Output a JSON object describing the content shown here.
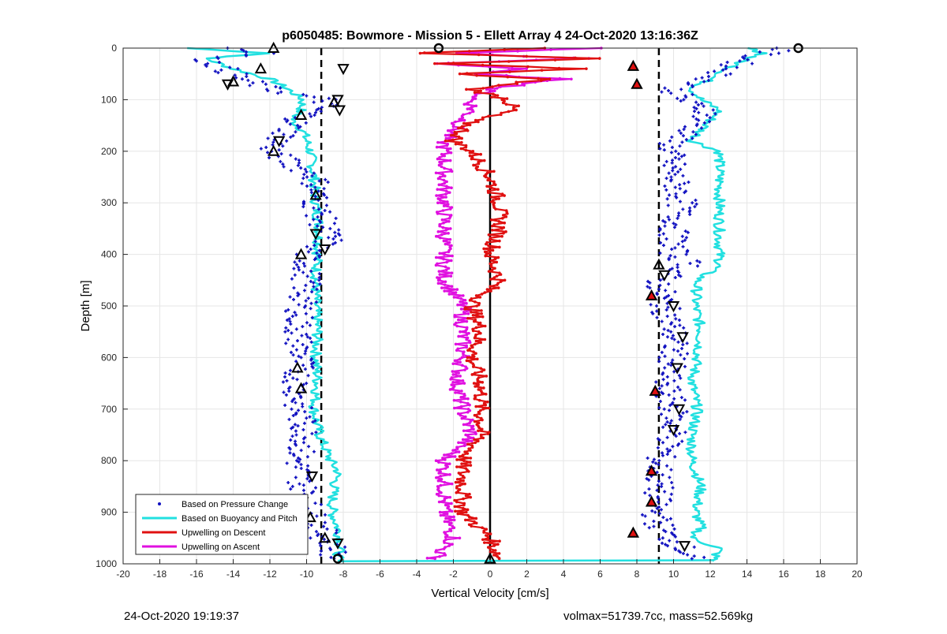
{
  "chart_data": {
    "type": "scatter",
    "title": "p6050485: Bowmore - Mission 5 - Ellett Array 4 24-Oct-2020 13:16:36Z",
    "xlabel": "Vertical Velocity [cm/s]",
    "ylabel": "Depth [m]",
    "xlim": [
      -20,
      20
    ],
    "ylim": [
      0,
      1000
    ],
    "y_reversed": true,
    "grid": true,
    "legend_position": "bottom-left",
    "x_ticks": [
      "-20",
      "-18",
      "-16",
      "-14",
      "-12",
      "-10",
      "-8",
      "-6",
      "-4",
      "-2",
      "0",
      "2",
      "4",
      "6",
      "8",
      "10",
      "12",
      "14",
      "16",
      "18",
      "20"
    ],
    "y_ticks": [
      "0",
      "100",
      "200",
      "300",
      "400",
      "500",
      "600",
      "700",
      "800",
      "900",
      "1000"
    ],
    "reference_lines": {
      "dashed_x": [
        -9.2,
        9.2
      ],
      "solid_x": [
        0
      ]
    },
    "series": [
      {
        "name": "Based on Pressure Change",
        "color": "#1010c0",
        "marker": "point",
        "left_branch": {
          "depth": [
            0,
            10,
            20,
            40,
            60,
            80,
            100,
            110,
            120,
            140,
            160,
            180,
            200,
            250,
            300,
            350,
            370,
            400,
            450,
            500,
            550,
            600,
            650,
            700,
            750,
            800,
            850,
            900,
            930,
            950,
            970,
            990
          ],
          "x": [
            -14,
            -12,
            -15.5,
            -14.5,
            -13.5,
            -12,
            -9,
            -9,
            -9.5,
            -10.5,
            -11,
            -11.5,
            -12,
            -9.5,
            -9.5,
            -9,
            -8.7,
            -10,
            -10,
            -10.3,
            -10.5,
            -10.3,
            -10.5,
            -10.5,
            -10,
            -10.5,
            -10.2,
            -9.8,
            -9.2,
            -9,
            -8.5,
            -8.5
          ]
        },
        "right_branch": {
          "depth": [
            0,
            10,
            20,
            40,
            60,
            80,
            100,
            110,
            120,
            140,
            160,
            180,
            200,
            250,
            300,
            350,
            400,
            420,
            450,
            500,
            550,
            600,
            650,
            700,
            750,
            800,
            850,
            900,
            930,
            950,
            970,
            990
          ],
          "x": [
            16,
            15,
            14,
            13,
            12,
            10,
            10.5,
            11,
            12,
            11.5,
            11,
            10,
            9.8,
            10,
            10.5,
            10,
            10,
            11,
            9.2,
            9.5,
            10,
            10,
            9.5,
            10,
            10,
            9.2,
            9.2,
            9,
            9.3,
            9.8,
            10.5,
            11
          ]
        }
      },
      {
        "name": "Based on Buoyancy and Pitch",
        "color": "#22e0e0",
        "left_branch": {
          "depth": [
            0,
            10,
            20,
            40,
            60,
            80,
            100,
            120,
            140,
            160,
            180,
            200,
            250,
            300,
            350,
            400,
            450,
            500,
            550,
            600,
            650,
            700,
            750,
            800,
            820,
            850,
            880,
            900,
            930,
            950,
            970,
            990,
            995
          ],
          "x": [
            -16.5,
            -12,
            -15.5,
            -14,
            -12,
            -11,
            -10.2,
            -10.3,
            -10.8,
            -10.2,
            -10,
            -9.8,
            -9.6,
            -9.5,
            -9.3,
            -9.4,
            -9.5,
            -9.5,
            -9.4,
            -9.5,
            -9.4,
            -9.6,
            -9.3,
            -8.7,
            -8.3,
            -8.5,
            -8.6,
            -8.6,
            -8.3,
            -8.2,
            -8.2,
            -8.3,
            -8.3
          ]
        },
        "right_branch": {
          "depth": [
            0,
            10,
            20,
            40,
            60,
            80,
            100,
            120,
            140,
            160,
            180,
            200,
            250,
            300,
            350,
            400,
            420,
            450,
            500,
            550,
            600,
            650,
            700,
            750,
            800,
            850,
            900,
            930,
            950,
            970,
            990,
            995
          ],
          "x": [
            14,
            15,
            14,
            13,
            12,
            11,
            11.5,
            12.5,
            12,
            11.5,
            11,
            12.5,
            12.5,
            12.5,
            12.5,
            12.5,
            12.5,
            11.3,
            11.2,
            11.5,
            11.3,
            11,
            11.3,
            11,
            11,
            11.5,
            11.2,
            11.5,
            11,
            12.5,
            12.2,
            12.2
          ]
        }
      },
      {
        "name": "Upwelling on Descent",
        "color": "#e01010",
        "depth": [
          0,
          10,
          20,
          30,
          40,
          50,
          60,
          80,
          100,
          120,
          140,
          160,
          180,
          200,
          250,
          300,
          350,
          400,
          450,
          500,
          550,
          600,
          650,
          700,
          750,
          800,
          850,
          900,
          950,
          990
        ],
        "x": [
          3,
          -4,
          6,
          -3,
          5,
          -2,
          3,
          -1,
          1,
          1.2,
          -1,
          -1.5,
          -2,
          -1,
          0,
          0.5,
          0.5,
          0,
          0.5,
          -1,
          -0.5,
          -1,
          -0.5,
          -0.5,
          -0.5,
          -1.5,
          -1.5,
          -1.5,
          0,
          0.5
        ]
      },
      {
        "name": "Upwelling on Ascent",
        "color": "#e010e0",
        "depth": [
          0,
          10,
          20,
          30,
          40,
          50,
          60,
          80,
          100,
          120,
          140,
          160,
          180,
          200,
          250,
          300,
          350,
          400,
          450,
          500,
          550,
          600,
          650,
          700,
          750,
          800,
          850,
          900,
          950,
          990
        ],
        "x": [
          6,
          -2,
          5,
          -3,
          2,
          -1,
          4,
          0,
          -1,
          -1,
          -1.5,
          -2,
          -2.5,
          -2.5,
          -2.5,
          -2.5,
          -2.5,
          -2.5,
          -2.5,
          -1.5,
          -1.5,
          -1.5,
          -1.8,
          -1.5,
          -1,
          -2.5,
          -2.5,
          -2.5,
          -2,
          -3
        ]
      }
    ],
    "markers": {
      "triangle_down": {
        "depth": [
          40,
          70,
          100,
          120,
          180,
          360,
          390,
          440,
          500,
          560,
          620,
          700,
          740,
          830,
          880,
          960,
          965
        ],
        "x": [
          -8,
          -14.3,
          -8.3,
          -8.2,
          -11.5,
          -9.5,
          -9,
          9.5,
          10,
          10.5,
          10.2,
          10.3,
          10,
          -9.7,
          -10.2,
          -8.3,
          10.6
        ]
      },
      "triangle_up": {
        "depth": [
          0,
          40,
          65,
          105,
          130,
          200,
          285,
          400,
          420,
          620,
          660,
          910,
          950,
          990
        ],
        "x": [
          -11.8,
          -12.5,
          -14,
          -8.5,
          -10.3,
          -11.8,
          -9.5,
          -10.3,
          9.2,
          -10.5,
          -10.3,
          -9.8,
          -9,
          0
        ]
      },
      "circle": {
        "depth": [
          0,
          0,
          990
        ],
        "x": [
          -2.8,
          16.8,
          -8.3
        ]
      },
      "red_triangle": {
        "depth": [
          35,
          70,
          480,
          665,
          820,
          880,
          940
        ],
        "x": [
          7.8,
          8,
          8.8,
          9,
          8.8,
          8.8,
          7.8
        ]
      }
    },
    "legend": [
      {
        "label": "Based on Pressure Change",
        "style": "dot",
        "color": "#1010c0"
      },
      {
        "label": "Based on Buoyancy and Pitch",
        "style": "line",
        "color": "#22e0e0"
      },
      {
        "label": "Upwelling on Descent",
        "style": "line",
        "color": "#e01010"
      },
      {
        "label": "Upwelling on Ascent",
        "style": "line",
        "color": "#e010e0"
      }
    ]
  },
  "footer": {
    "timestamp": "24-Oct-2020 19:19:37",
    "info": "volmax=51739.7cc, mass=52.569kg"
  }
}
